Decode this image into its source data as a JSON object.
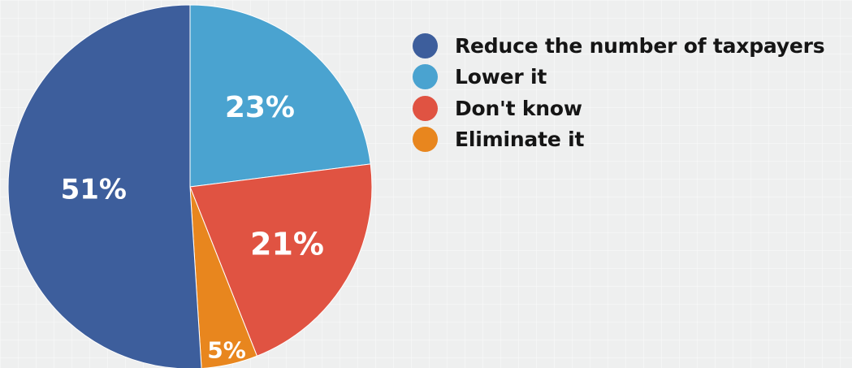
{
  "chart_data": {
    "type": "pie",
    "categories": [
      "Reduce the number of taxpayers",
      "Lower it",
      "Don't know",
      "Eliminate it"
    ],
    "values": [
      51,
      23,
      21,
      5
    ],
    "labels": [
      "51%",
      "23%",
      "21%",
      "5%"
    ],
    "colors": [
      "#3d5e9c",
      "#4aa3d0",
      "#e05342",
      "#e8861e"
    ],
    "legend_position": "right"
  }
}
